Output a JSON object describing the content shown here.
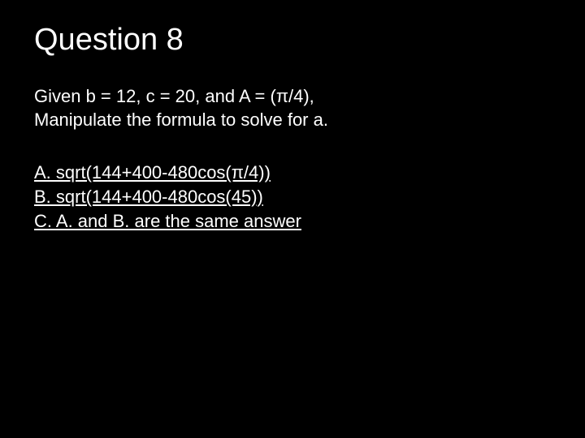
{
  "slide": {
    "background_color": "#000000",
    "text_color": "#ffffff",
    "title_fontsize": 38,
    "body_fontsize": 22,
    "title": "Question 8",
    "prompt_line1": "Given b = 12, c = 20, and A = (π/4),",
    "prompt_line2": "Manipulate the formula to solve for a.",
    "choices": {
      "a": "A. sqrt(144+400-480cos(π/4))",
      "b": "B. sqrt(144+400-480cos(45))",
      "c": "C. A. and B. are the same answer"
    }
  }
}
